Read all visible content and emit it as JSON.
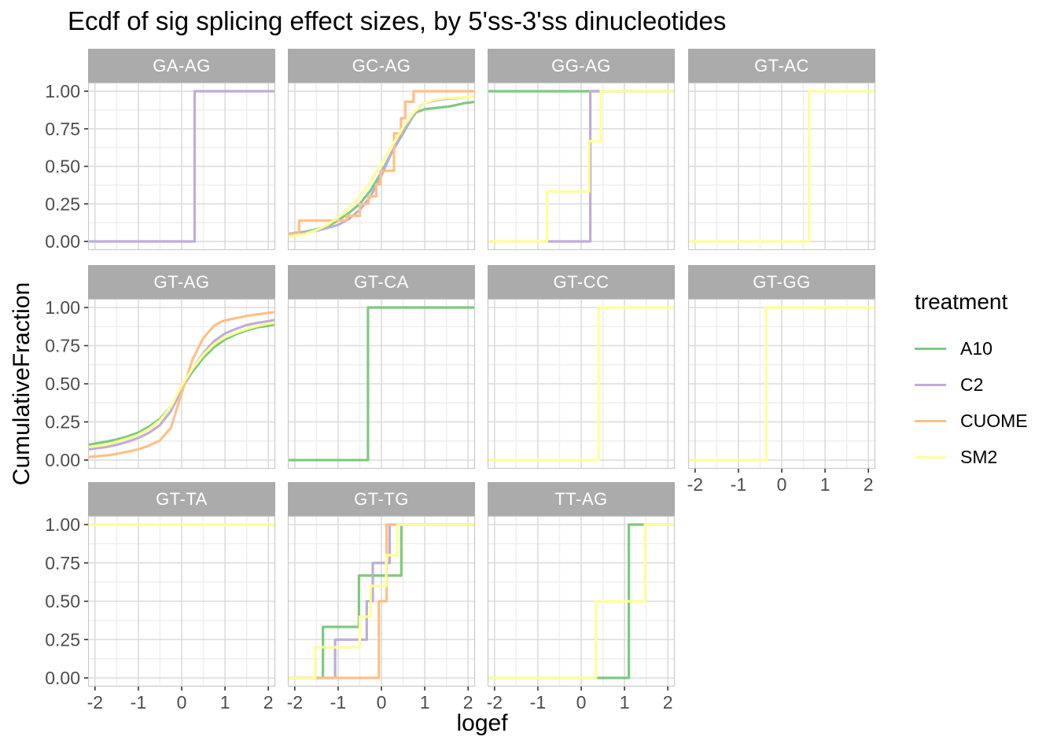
{
  "title": "Ecdf of sig splicing effect sizes, by 5'ss-3'ss dinucleotides",
  "chart_data": {
    "type": "line",
    "subtype": "faceted-ecdf-step",
    "title": "Ecdf of sig splicing effect sizes, by 5'ss-3'ss dinucleotides",
    "xlabel": "logef",
    "ylabel": "CumulativeFraction",
    "xlim": [
      -2.16,
      2.16
    ],
    "ylim": [
      0,
      1
    ],
    "x_ticks": [
      -2,
      -1,
      0,
      1,
      2
    ],
    "y_ticks": [
      "0.00",
      "0.25",
      "0.50",
      "0.75",
      "1.00"
    ],
    "y_tick_values": [
      0,
      0.25,
      0.5,
      0.75,
      1
    ],
    "grid": true,
    "facet_grid": {
      "rows": 3,
      "cols": 4,
      "last_row_panels": 3
    },
    "legend": {
      "title": "treatment",
      "position": "right",
      "entries": [
        {
          "label": "A10",
          "color": "#7fc97f"
        },
        {
          "label": "C2",
          "color": "#beaed4"
        },
        {
          "label": "CUOME",
          "color": "#fdc086"
        },
        {
          "label": "SM2",
          "color": "#ffff99"
        }
      ]
    },
    "colors": {
      "A10": "#7fc97f",
      "C2": "#beaed4",
      "CUOME": "#fdc086",
      "SM2": "#ffff99"
    },
    "style_colors": {
      "strip_bg": "#ababab",
      "strip_text": "#ffffff",
      "grid_major": "#dcdcdc",
      "grid_minor": "#efefef",
      "panel_border": "#c9c9c9",
      "tick_text": "#4d4d4d"
    },
    "facets": [
      {
        "label": "GA-AG",
        "series": [
          {
            "name": "C2",
            "type": "step",
            "points": [
              [
                0.3,
                1.0
              ]
            ]
          }
        ]
      },
      {
        "label": "GC-AG",
        "series": [
          {
            "name": "A10",
            "type": "curve",
            "points": [
              [
                -2.16,
                0.05
              ],
              [
                -1.75,
                0.065
              ],
              [
                -1.5,
                0.08
              ],
              [
                -1.25,
                0.1
              ],
              [
                -1,
                0.14
              ],
              [
                -0.75,
                0.19
              ],
              [
                -0.5,
                0.25
              ],
              [
                -0.25,
                0.34
              ],
              [
                0,
                0.46
              ],
              [
                0.25,
                0.6
              ],
              [
                0.5,
                0.72
              ],
              [
                0.7,
                0.82
              ],
              [
                0.8,
                0.86
              ],
              [
                1,
                0.88
              ],
              [
                1.3,
                0.89
              ],
              [
                1.6,
                0.9
              ],
              [
                1.9,
                0.92
              ],
              [
                2.16,
                0.93
              ]
            ]
          },
          {
            "name": "C2",
            "type": "curve",
            "points": [
              [
                -2.16,
                0.05
              ],
              [
                -1.75,
                0.06
              ],
              [
                -1.5,
                0.07
              ],
              [
                -1.25,
                0.09
              ],
              [
                -1,
                0.11
              ],
              [
                -0.75,
                0.15
              ],
              [
                -0.5,
                0.21
              ],
              [
                -0.25,
                0.3
              ],
              [
                0,
                0.44
              ],
              [
                0.25,
                0.6
              ],
              [
                0.5,
                0.73
              ],
              [
                0.75,
                0.85
              ],
              [
                0.9,
                0.9
              ],
              [
                1,
                0.92
              ],
              [
                1.25,
                0.94
              ],
              [
                1.5,
                0.95
              ],
              [
                2,
                0.96
              ],
              [
                2.16,
                0.97
              ]
            ]
          },
          {
            "name": "CUOME",
            "type": "step",
            "points": [
              [
                -2.3,
                0.05
              ],
              [
                -1.9,
                0.14
              ],
              [
                -0.8,
                0.17
              ],
              [
                -0.5,
                0.25
              ],
              [
                -0.3,
                0.3
              ],
              [
                -0.12,
                0.38
              ],
              [
                -0.02,
                0.47
              ],
              [
                0.29,
                0.72
              ],
              [
                0.45,
                0.82
              ],
              [
                0.55,
                0.93
              ],
              [
                0.74,
                1.0
              ]
            ]
          },
          {
            "name": "SM2",
            "type": "curve",
            "points": [
              [
                -2.16,
                0.03
              ],
              [
                -1.75,
                0.05
              ],
              [
                -1.5,
                0.075
              ],
              [
                -1.25,
                0.11
              ],
              [
                -1,
                0.16
              ],
              [
                -0.75,
                0.22
              ],
              [
                -0.5,
                0.3
              ],
              [
                -0.25,
                0.4
              ],
              [
                0,
                0.52
              ],
              [
                0.25,
                0.64
              ],
              [
                0.5,
                0.76
              ],
              [
                0.75,
                0.86
              ],
              [
                1,
                0.92
              ],
              [
                1.25,
                0.945
              ],
              [
                1.5,
                0.955
              ],
              [
                2,
                0.96
              ],
              [
                2.16,
                0.97
              ]
            ]
          }
        ]
      },
      {
        "label": "GG-AG",
        "series": [
          {
            "name": "A10",
            "type": "step",
            "points": [
              [
                -2.3,
                1.0
              ]
            ]
          },
          {
            "name": "C2",
            "type": "step",
            "points": [
              [
                0.21,
                1.0
              ]
            ]
          },
          {
            "name": "SM2",
            "type": "step",
            "points": [
              [
                -0.79,
                0.333
              ],
              [
                0.18,
                0.667
              ],
              [
                0.45,
                1.0
              ]
            ]
          }
        ]
      },
      {
        "label": "GT-AC",
        "series": [
          {
            "name": "SM2",
            "type": "step",
            "points": [
              [
                0.63,
                1.0
              ]
            ]
          }
        ]
      },
      {
        "label": "GT-AG",
        "series": [
          {
            "name": "A10",
            "type": "curve",
            "points": [
              [
                -2.16,
                0.1
              ],
              [
                -1.75,
                0.12
              ],
              [
                -1.5,
                0.135
              ],
              [
                -1.25,
                0.155
              ],
              [
                -1,
                0.18
              ],
              [
                -0.75,
                0.22
              ],
              [
                -0.5,
                0.27
              ],
              [
                -0.25,
                0.35
              ],
              [
                0,
                0.47
              ],
              [
                0.25,
                0.58
              ],
              [
                0.5,
                0.67
              ],
              [
                0.75,
                0.74
              ],
              [
                1,
                0.79
              ],
              [
                1.25,
                0.825
              ],
              [
                1.5,
                0.85
              ],
              [
                1.75,
                0.87
              ],
              [
                2,
                0.88
              ],
              [
                2.16,
                0.89
              ]
            ]
          },
          {
            "name": "C2",
            "type": "curve",
            "points": [
              [
                -2.16,
                0.07
              ],
              [
                -1.75,
                0.085
              ],
              [
                -1.5,
                0.1
              ],
              [
                -1.25,
                0.12
              ],
              [
                -1,
                0.145
              ],
              [
                -0.75,
                0.18
              ],
              [
                -0.5,
                0.23
              ],
              [
                -0.25,
                0.32
              ],
              [
                0,
                0.46
              ],
              [
                0.25,
                0.6
              ],
              [
                0.5,
                0.7
              ],
              [
                0.75,
                0.78
              ],
              [
                1,
                0.83
              ],
              [
                1.25,
                0.86
              ],
              [
                1.5,
                0.885
              ],
              [
                1.75,
                0.9
              ],
              [
                2,
                0.91
              ],
              [
                2.16,
                0.92
              ]
            ]
          },
          {
            "name": "CUOME",
            "type": "curve",
            "points": [
              [
                -2.16,
                0.02
              ],
              [
                -1.75,
                0.03
              ],
              [
                -1.5,
                0.04
              ],
              [
                -1.25,
                0.055
              ],
              [
                -1,
                0.07
              ],
              [
                -0.75,
                0.095
              ],
              [
                -0.5,
                0.13
              ],
              [
                -0.25,
                0.21
              ],
              [
                0,
                0.44
              ],
              [
                0.25,
                0.66
              ],
              [
                0.5,
                0.8
              ],
              [
                0.75,
                0.88
              ],
              [
                0.9,
                0.905
              ],
              [
                1,
                0.915
              ],
              [
                1.25,
                0.93
              ],
              [
                1.5,
                0.945
              ],
              [
                1.75,
                0.955
              ],
              [
                2,
                0.965
              ],
              [
                2.16,
                0.97
              ]
            ]
          },
          {
            "name": "SM2",
            "type": "curve",
            "points": [
              [
                -2.16,
                0.085
              ],
              [
                -1.75,
                0.1
              ],
              [
                -1.5,
                0.12
              ],
              [
                -1.25,
                0.14
              ],
              [
                -1,
                0.165
              ],
              [
                -0.75,
                0.205
              ],
              [
                -0.5,
                0.26
              ],
              [
                -0.25,
                0.35
              ],
              [
                0,
                0.49
              ],
              [
                0.25,
                0.6
              ],
              [
                0.5,
                0.69
              ],
              [
                0.75,
                0.76
              ],
              [
                1,
                0.805
              ],
              [
                1.25,
                0.835
              ],
              [
                1.5,
                0.86
              ],
              [
                1.75,
                0.88
              ],
              [
                2,
                0.895
              ],
              [
                2.16,
                0.9
              ]
            ]
          }
        ]
      },
      {
        "label": "GT-CA",
        "series": [
          {
            "name": "A10",
            "type": "step",
            "points": [
              [
                -0.31,
                1.0
              ]
            ]
          }
        ]
      },
      {
        "label": "GT-CC",
        "series": [
          {
            "name": "SM2",
            "type": "step",
            "points": [
              [
                0.4,
                1.0
              ]
            ]
          }
        ]
      },
      {
        "label": "GT-GG",
        "series": [
          {
            "name": "SM2",
            "type": "step",
            "points": [
              [
                -0.36,
                1.0
              ]
            ]
          }
        ]
      },
      {
        "label": "GT-TA",
        "series": [
          {
            "name": "SM2",
            "type": "step",
            "points": [
              [
                -2.3,
                1.0
              ]
            ]
          }
        ]
      },
      {
        "label": "GT-TG",
        "series": [
          {
            "name": "A10",
            "type": "step",
            "points": [
              [
                -1.35,
                0.333
              ],
              [
                -0.52,
                0.667
              ],
              [
                0.46,
                1.0
              ]
            ]
          },
          {
            "name": "C2",
            "type": "step",
            "points": [
              [
                -1.07,
                0.25
              ],
              [
                -0.34,
                0.5
              ],
              [
                -0.2,
                0.75
              ],
              [
                0.19,
                1.0
              ]
            ]
          },
          {
            "name": "CUOME",
            "type": "step",
            "points": [
              [
                -0.06,
                0.5
              ],
              [
                0.12,
                1.0
              ]
            ]
          },
          {
            "name": "SM2",
            "type": "step",
            "points": [
              [
                -1.53,
                0.2
              ],
              [
                -0.5,
                0.4
              ],
              [
                -0.25,
                0.6
              ],
              [
                0.11,
                0.8
              ],
              [
                0.37,
                1.0
              ]
            ]
          }
        ]
      },
      {
        "label": "TT-AG",
        "series": [
          {
            "name": "A10",
            "type": "step",
            "points": [
              [
                1.1,
                1.0
              ]
            ]
          },
          {
            "name": "SM2",
            "type": "step",
            "points": [
              [
                0.34,
                0.5
              ],
              [
                1.47,
                1.0
              ]
            ]
          }
        ]
      }
    ]
  }
}
